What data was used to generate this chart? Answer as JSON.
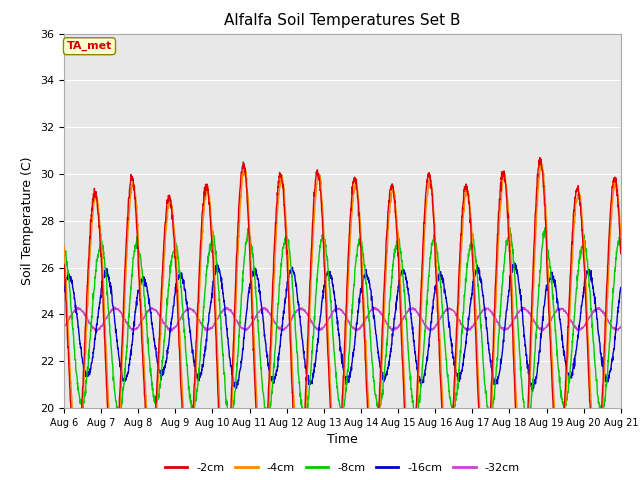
{
  "title": "Alfalfa Soil Temperatures Set B",
  "xlabel": "Time",
  "ylabel": "Soil Temperature (C)",
  "ylim": [
    20,
    36
  ],
  "bg_color": "#e8e8e8",
  "fig_color": "#ffffff",
  "annotation_text": "TA_met",
  "annotation_color": "#cc0000",
  "annotation_bg": "#ffffcc",
  "legend_labels": [
    "-2cm",
    "-4cm",
    "-8cm",
    "-16cm",
    "-32cm"
  ],
  "line_colors": [
    "#dd0000",
    "#ff8800",
    "#00cc00",
    "#0000cc",
    "#cc44cc"
  ],
  "xtick_labels": [
    "Aug 6",
    "Aug 7",
    "Aug 8",
    "Aug 9",
    "Aug 10",
    "Aug 11",
    "Aug 12",
    "Aug 13",
    "Aug 14",
    "Aug 15",
    "Aug 16",
    "Aug 17",
    "Aug 18",
    "Aug 19",
    "Aug 20",
    "Aug 21"
  ],
  "n_days": 15,
  "pts_per_day": 144,
  "base_temp": 23.5,
  "amplitude_2cm": 6.0,
  "amplitude_4cm": 5.8,
  "amplitude_8cm": 3.5,
  "amplitude_16cm": 2.2,
  "amplitude_32cm": 0.45,
  "phase_shift_4cm": 0.03,
  "phase_shift_8cm": 0.15,
  "phase_shift_16cm": 0.3,
  "phase_shift_32cm": 0.55,
  "day_amps": [
    0.95,
    1.05,
    0.92,
    1.0,
    1.15,
    1.08,
    1.1,
    1.05,
    1.0,
    1.08,
    1.0,
    1.1,
    1.18,
    0.98,
    1.05
  ]
}
